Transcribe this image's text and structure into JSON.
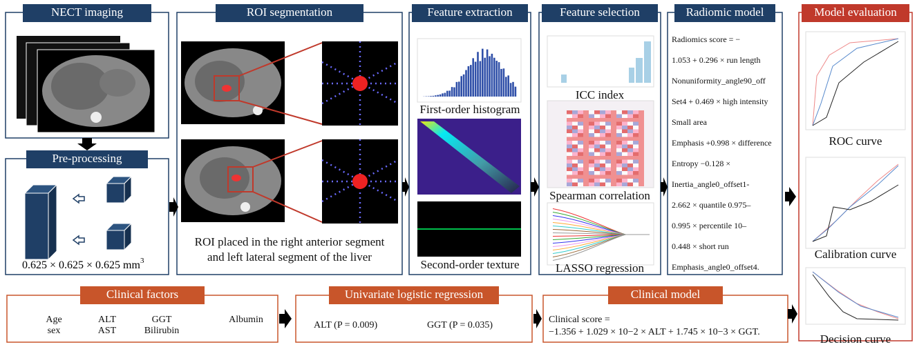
{
  "panels": {
    "nect": {
      "title": "NECT imaging"
    },
    "preprocessing": {
      "title": "Pre-processing",
      "voxel": "0.625 × 0.625 × 0.625 mm",
      "voxel_sup": "3"
    },
    "roi": {
      "title": "ROI segmentation",
      "caption": [
        "ROI placed in the right anterior segment",
        "and left lateral segment of the liver"
      ]
    },
    "extraction": {
      "title": "Feature extraction",
      "labels": [
        "First-order histogram",
        "Second-order texture"
      ]
    },
    "selection": {
      "title": "Feature selection",
      "labels": [
        "ICC index",
        "Spearman correlation",
        "LASSO regression"
      ]
    },
    "radiomic": {
      "title": "Radiomic model",
      "lines": [
        "Radiomics score = −",
        "1.053 + 0.296 × run length",
        "Nonuniformity_angle90_off",
        "Set4 + 0.469 × high intensity",
        "Small area",
        "Emphasis +0.998 × difference",
        "Entropy −0.128 ×",
        "Inertia_angle0_offset1-",
        "2.662 × quantile 0.975–",
        "0.995 × percentile 10–",
        "0.448 × short run",
        "Emphasis_angle0_offset4."
      ]
    },
    "evaluation": {
      "title": "Model evaluation",
      "labels": [
        "ROC curve",
        "Calibration curve",
        "Decision curve"
      ]
    },
    "clinical_factors": {
      "title": "Clinical factors",
      "items": [
        "Age",
        "sex",
        "ALT",
        "AST",
        "GGT",
        "Bilirubin",
        "Albumin"
      ]
    },
    "univariate": {
      "title": "Univariate logistic regression",
      "items": [
        "ALT (P = 0.009)",
        "GGT (P = 0.035)"
      ]
    },
    "clinical_model": {
      "title": "Clinical model",
      "lines": [
        "Clinical score =",
        "−1.356 + 1.029 × 10−2 × ALT + 1.745 × 10−3 × GGT."
      ]
    }
  }
}
